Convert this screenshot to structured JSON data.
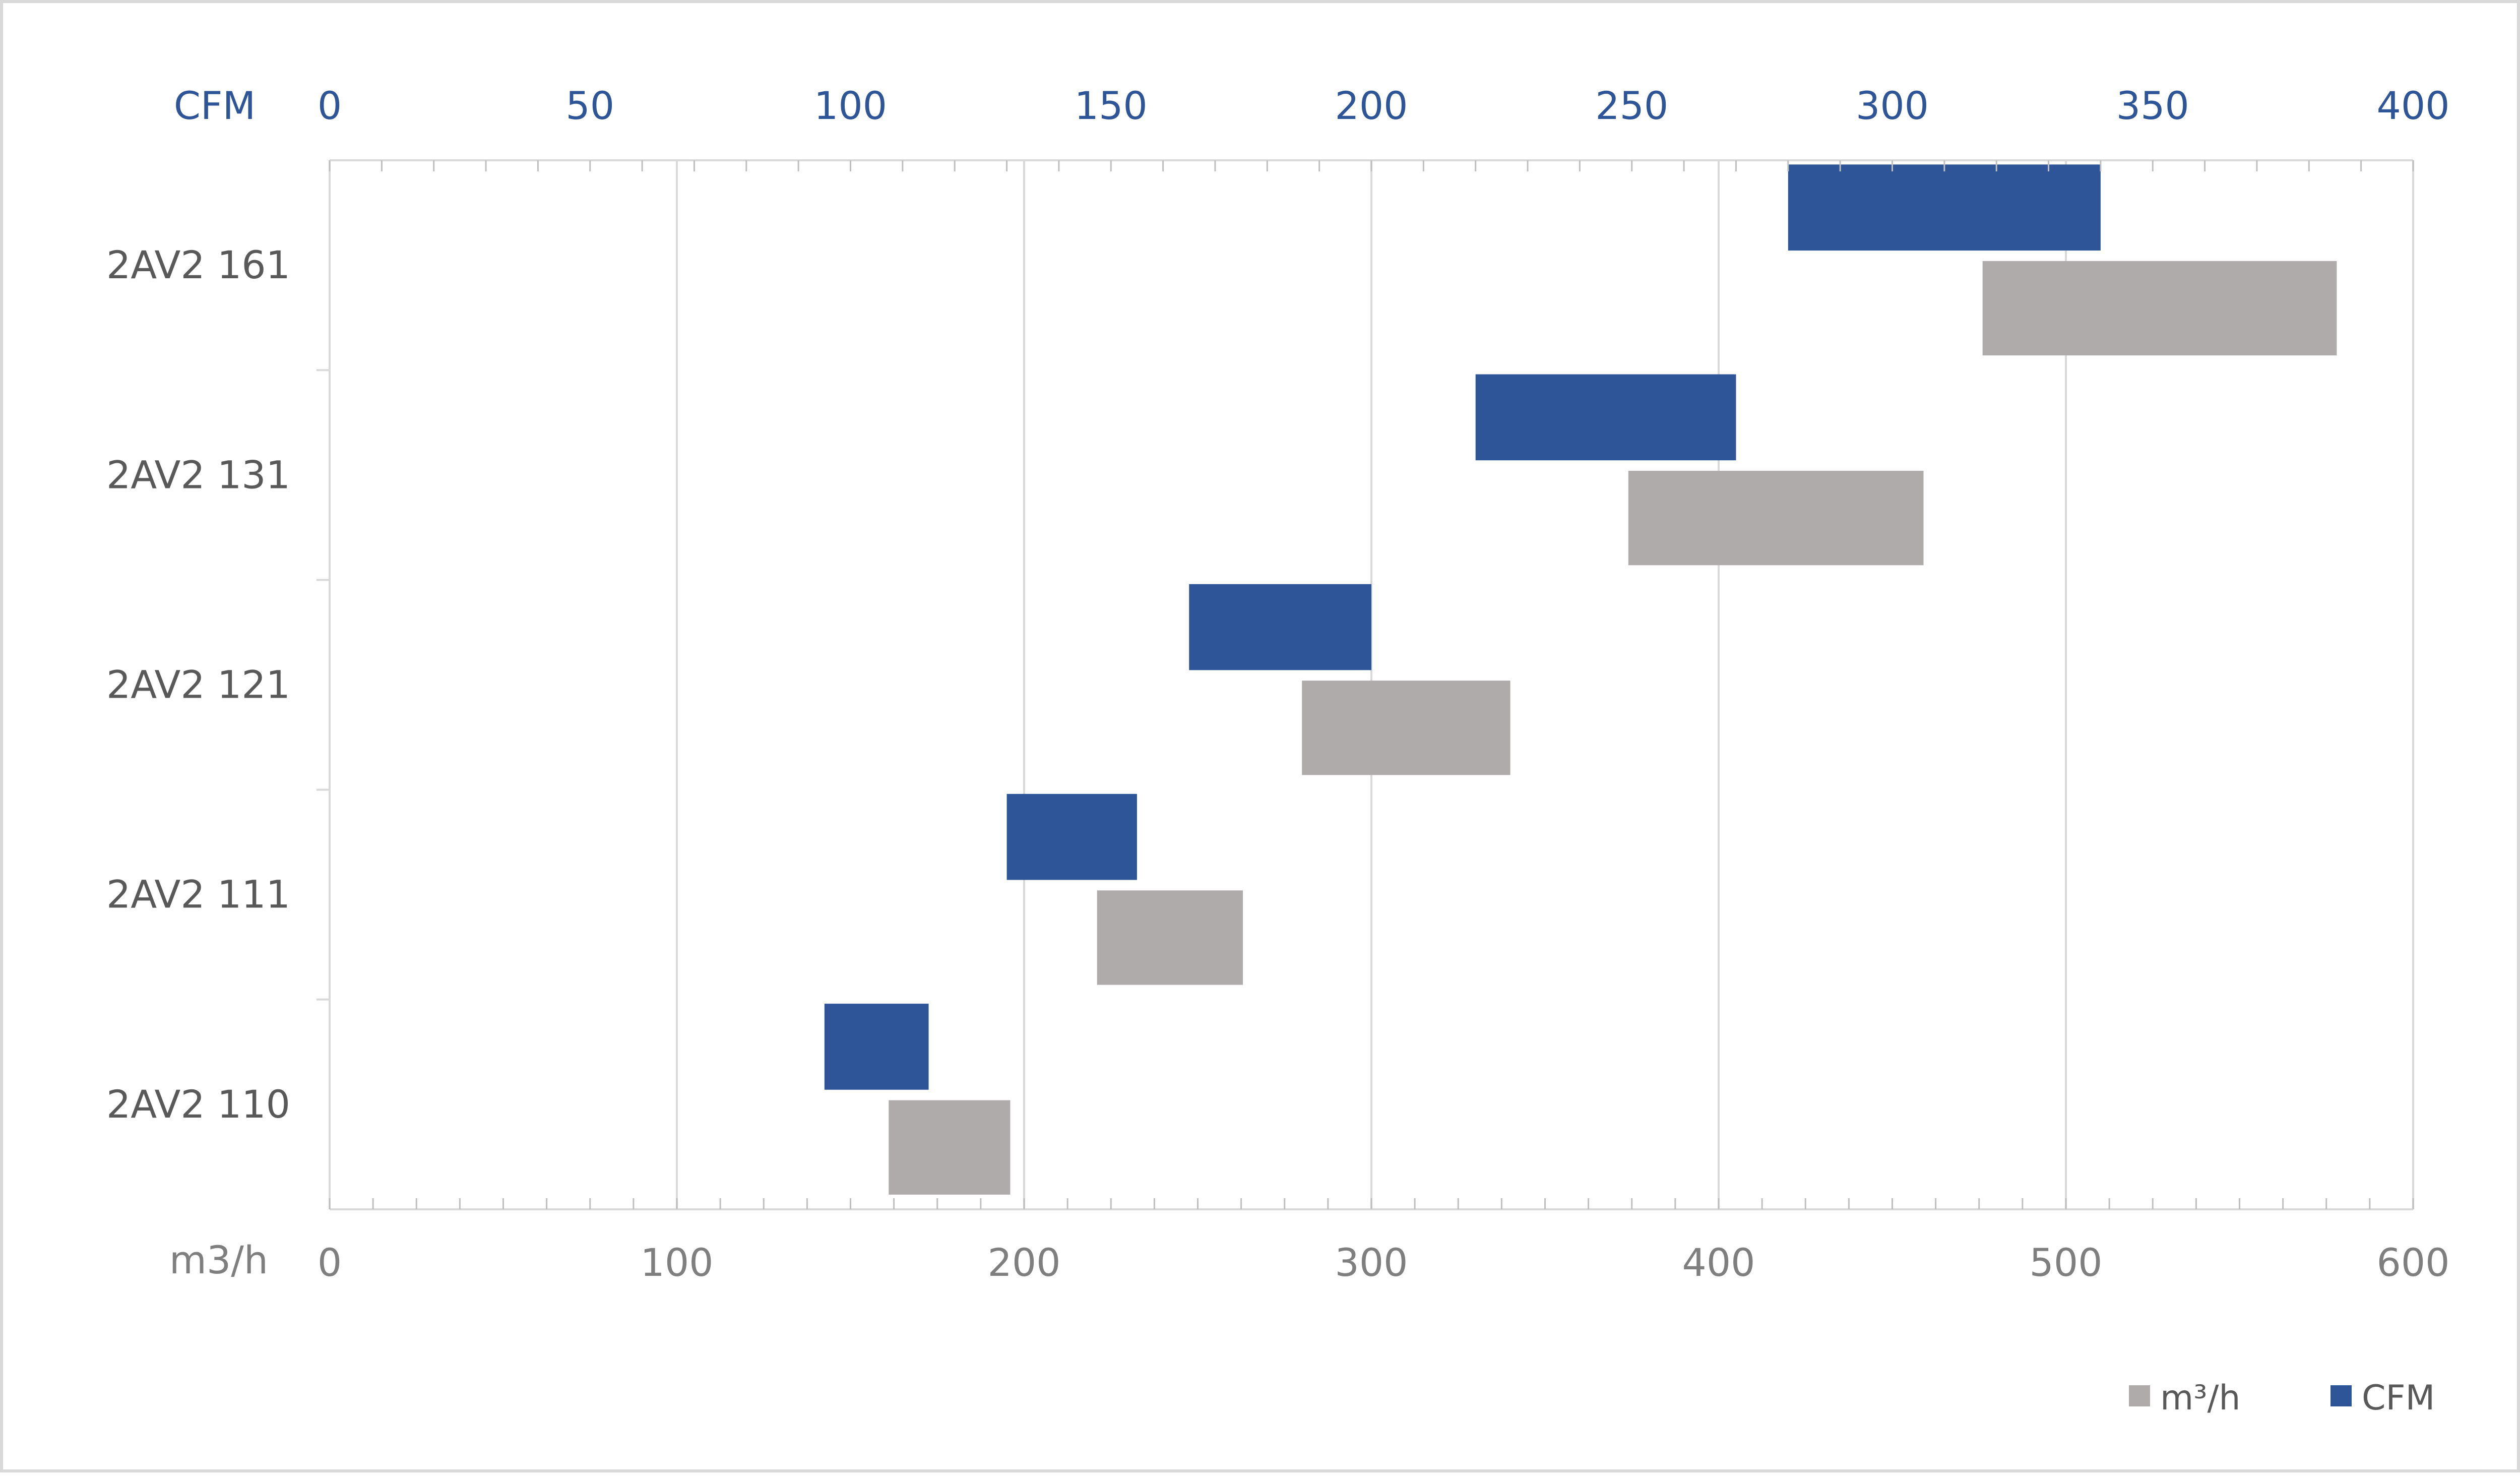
{
  "chart_data": {
    "type": "bar",
    "subtype": "floating-range-bars",
    "categories": [
      "2AV2 161",
      "2AV2 131",
      "2AV2 121",
      "2AV2 111",
      "2AV2 110"
    ],
    "series": [
      {
        "name": "CFM",
        "axis": "top",
        "color": "#2e5597",
        "ranges": [
          [
            280,
            340
          ],
          [
            220,
            270
          ],
          [
            165,
            200
          ],
          [
            130,
            155
          ],
          [
            95,
            115
          ]
        ]
      },
      {
        "name": "m³/h",
        "axis": "bottom",
        "color": "#afabab",
        "ranges": [
          [
            476,
            578
          ],
          [
            374,
            459
          ],
          [
            280,
            340
          ],
          [
            221,
            263
          ],
          [
            161,
            196
          ]
        ]
      }
    ],
    "top_axis": {
      "label": "CFM",
      "range": [
        0,
        400
      ],
      "ticks": [
        "0",
        "50",
        "100",
        "150",
        "200",
        "250",
        "300",
        "350",
        "400"
      ],
      "color": "#2e5597"
    },
    "bottom_axis": {
      "label": "m3/h",
      "range": [
        0,
        600
      ],
      "ticks": [
        "0",
        "100",
        "200",
        "300",
        "400",
        "500",
        "600"
      ],
      "color": "#7f7f7f"
    },
    "legend": {
      "position": "bottom-right",
      "entries": [
        {
          "label": "m³/h",
          "color": "#afabab"
        },
        {
          "label": "CFM",
          "color": "#2e5597"
        }
      ]
    },
    "grid": true,
    "category_label_color": "#595959"
  }
}
